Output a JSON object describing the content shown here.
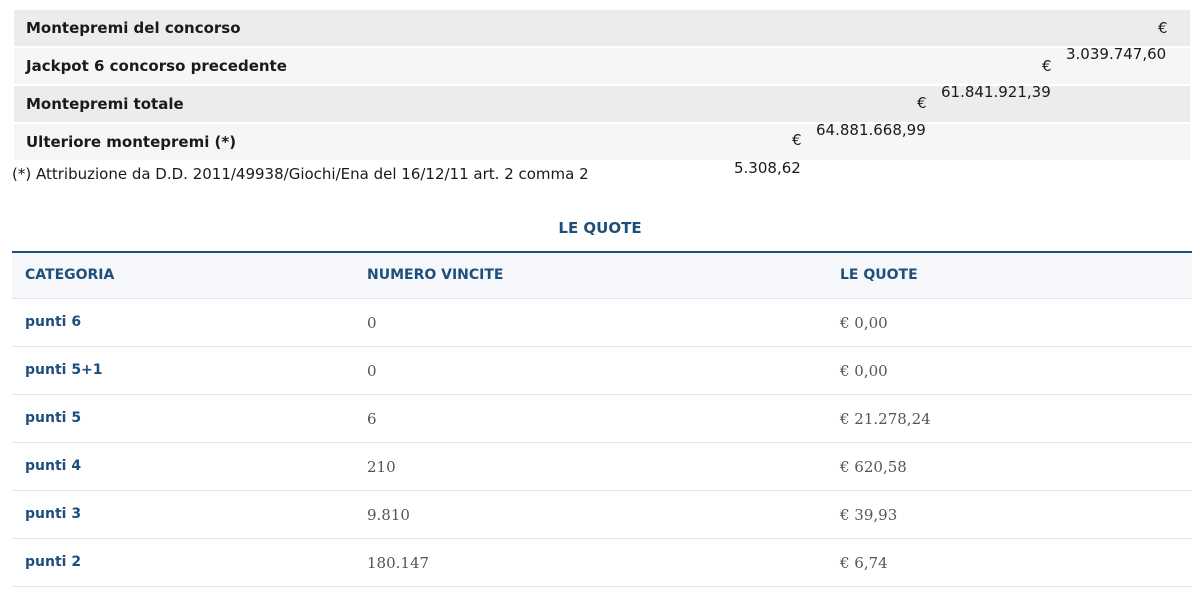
{
  "montepremi": {
    "rows": [
      {
        "label": "Montepremi del concorso",
        "currency": "€",
        "value": "3.039.747,60"
      },
      {
        "label": "Jackpot 6 concorso precedente",
        "currency": "€",
        "value": "61.841.921,39"
      },
      {
        "label": "Montepremi totale",
        "currency": "€",
        "value": "64.881.668,99"
      },
      {
        "label": "Ulteriore montepremi (*)",
        "currency": "€",
        "value": "5.308,62"
      }
    ],
    "note": "(*) Attribuzione da D.D. 2011/49938/Giochi/Ena del 16/12/11 art. 2 comma 2"
  },
  "quote": {
    "title": "LE QUOTE",
    "headers": [
      "CATEGORIA",
      "NUMERO VINCITE",
      "LE QUOTE"
    ],
    "rows": [
      [
        "punti 6",
        "0",
        "€ 0,00"
      ],
      [
        "punti 5+1",
        "0",
        "€ 0,00"
      ],
      [
        "punti 5",
        "6",
        "€ 21.278,24"
      ],
      [
        "punti 4",
        "210",
        "€ 620,58"
      ],
      [
        "punti 3",
        "9.810",
        "€ 39,93"
      ],
      [
        "punti 2",
        "180.147",
        "€ 6,74"
      ]
    ]
  },
  "colors": {
    "accent": "#1e4f7c"
  }
}
